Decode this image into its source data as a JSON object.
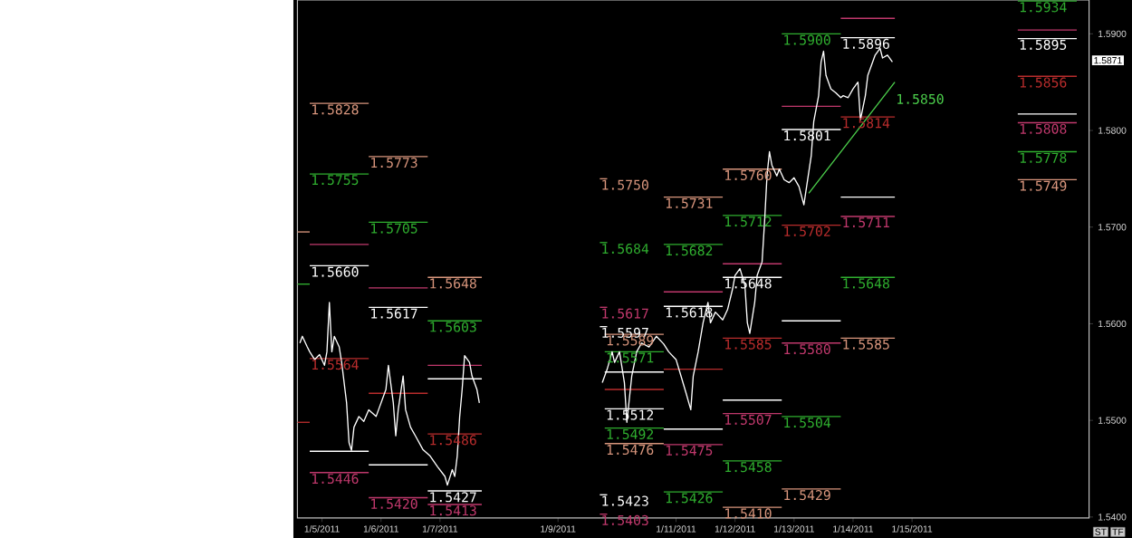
{
  "chart_data": {
    "type": "line",
    "xlim": [
      "2011-01-04T14:00",
      "2011-01-18T00:00"
    ],
    "ylim": [
      1.5399,
      1.5935
    ],
    "xticks": [
      {
        "value": "2011-01-05",
        "label": "1/5/2011"
      },
      {
        "value": "2011-01-06",
        "label": "1/6/2011"
      },
      {
        "value": "2011-01-07",
        "label": "1/7/2011"
      },
      {
        "value": "2011-01-09",
        "label": "1/9/2011"
      },
      {
        "value": "2011-01-11",
        "label": "1/11/2011"
      },
      {
        "value": "2011-01-12",
        "label": "1/12/2011"
      },
      {
        "value": "2011-01-13",
        "label": "1/13/2011"
      },
      {
        "value": "2011-01-14",
        "label": "1/14/2011"
      },
      {
        "value": "2011-01-15",
        "label": "1/15/2011"
      }
    ],
    "yticks": [
      {
        "value": 1.54,
        "label": "1.5400"
      },
      {
        "value": 1.55,
        "label": "1.5500"
      },
      {
        "value": 1.56,
        "label": "1.5600"
      },
      {
        "value": 1.57,
        "label": "1.5700"
      },
      {
        "value": 1.58,
        "label": "1.5800"
      },
      {
        "value": 1.59,
        "label": "1.5900"
      }
    ],
    "series": [
      {
        "x": [
          "2011-01-04T14:00",
          "2011-01-04T19:00"
        ],
        "values": [
          1.5695,
          1.5695
        ],
        "color": "#d8957c"
      },
      {
        "x": [
          "2011-01-04T14:00",
          "2011-01-04T19:00"
        ],
        "values": [
          1.5641,
          1.5641
        ],
        "color": "#2fae2f"
      },
      {
        "x": [
          "2011-01-04T14:00",
          "2011-01-04T19:00"
        ],
        "values": [
          1.5498,
          1.5498
        ],
        "color": "#b82c2c"
      },
      {
        "x": [
          "2011-01-04T19:00",
          "2011-01-05T19:00"
        ],
        "values": [
          1.5828,
          1.5828
        ],
        "color": "#d8957c",
        "value_labels": [
          "1.5828",
          null
        ]
      },
      {
        "x": [
          "2011-01-04T19:00",
          "2011-01-05T19:00"
        ],
        "values": [
          1.5755,
          1.5755
        ],
        "color": "#2fae2f",
        "value_labels": [
          "1.5755",
          null
        ]
      },
      {
        "x": [
          "2011-01-04T19:00",
          "2011-01-05T19:00"
        ],
        "values": [
          1.5682,
          1.5682
        ],
        "color": "#c0386c"
      },
      {
        "x": [
          "2011-01-04T19:00",
          "2011-01-05T19:00"
        ],
        "values": [
          1.566,
          1.566
        ],
        "color": "#ffffff",
        "value_labels": [
          "1.5660",
          null
        ]
      },
      {
        "x": [
          "2011-01-04T19:00",
          "2011-01-05T19:00"
        ],
        "values": [
          1.5564,
          1.5564
        ],
        "color": "#b82c2c",
        "value_labels": [
          "1.5564",
          null
        ]
      },
      {
        "x": [
          "2011-01-04T19:00",
          "2011-01-05T19:00"
        ],
        "values": [
          1.5468,
          1.5468
        ],
        "color": "#ffffff"
      },
      {
        "x": [
          "2011-01-04T19:00",
          "2011-01-05T19:00"
        ],
        "values": [
          1.5446,
          1.5446
        ],
        "color": "#c0386c",
        "value_labels": [
          "1.5446",
          null
        ]
      },
      {
        "x": [
          "2011-01-05T19:00",
          "2011-01-06T19:00"
        ],
        "values": [
          1.5773,
          1.5773
        ],
        "color": "#d8957c",
        "value_labels": [
          "1.5773",
          null
        ]
      },
      {
        "x": [
          "2011-01-05T19:00",
          "2011-01-06T19:00"
        ],
        "values": [
          1.5705,
          1.5705
        ],
        "color": "#2fae2f",
        "value_labels": [
          "1.5705",
          null
        ]
      },
      {
        "x": [
          "2011-01-05T19:00",
          "2011-01-06T19:00"
        ],
        "values": [
          1.5637,
          1.5637
        ],
        "color": "#c0386c"
      },
      {
        "x": [
          "2011-01-05T19:00",
          "2011-01-06T19:00"
        ],
        "values": [
          1.5617,
          1.5617
        ],
        "color": "#ffffff",
        "value_labels": [
          "1.5617",
          null
        ]
      },
      {
        "x": [
          "2011-01-05T19:00",
          "2011-01-06T19:00"
        ],
        "values": [
          1.5528,
          1.5528
        ],
        "color": "#b82c2c"
      },
      {
        "x": [
          "2011-01-05T19:00",
          "2011-01-06T19:00"
        ],
        "values": [
          1.5454,
          1.5454
        ],
        "color": "#ffffff"
      },
      {
        "x": [
          "2011-01-05T19:00",
          "2011-01-06T19:00"
        ],
        "values": [
          1.542,
          1.542
        ],
        "color": "#c0386c",
        "value_labels": [
          "1.5420",
          null
        ]
      },
      {
        "x": [
          "2011-01-06T19:00",
          "2011-01-07T17:00"
        ],
        "values": [
          1.5648,
          1.5648
        ],
        "color": "#d8957c",
        "value_labels": [
          "1.5648",
          null
        ]
      },
      {
        "x": [
          "2011-01-06T19:00",
          "2011-01-07T17:00"
        ],
        "values": [
          1.5603,
          1.5603
        ],
        "color": "#2fae2f",
        "value_labels": [
          "1.5603",
          null
        ]
      },
      {
        "x": [
          "2011-01-06T19:00",
          "2011-01-07T17:00"
        ],
        "values": [
          1.5557,
          1.5557
        ],
        "color": "#c0386c"
      },
      {
        "x": [
          "2011-01-06T19:00",
          "2011-01-07T17:00"
        ],
        "values": [
          1.5543,
          1.5543
        ],
        "color": "#ffffff"
      },
      {
        "x": [
          "2011-01-06T19:00",
          "2011-01-07T17:00"
        ],
        "values": [
          1.5486,
          1.5486
        ],
        "color": "#b82c2c",
        "value_labels": [
          "1.5486",
          null
        ]
      },
      {
        "x": [
          "2011-01-06T19:00",
          "2011-01-07T17:00"
        ],
        "values": [
          1.5427,
          1.5427
        ],
        "color": "#ffffff",
        "value_labels": [
          "1.5427",
          null
        ]
      },
      {
        "x": [
          "2011-01-06T19:00",
          "2011-01-07T17:00"
        ],
        "values": [
          1.5413,
          1.5413
        ],
        "color": "#c0386c",
        "value_labels": [
          "1.5413",
          null
        ]
      },
      {
        "x": [
          "2011-01-09T17:00",
          "2011-01-09T20:00"
        ],
        "values": [
          1.575,
          1.575
        ],
        "color": "#d8957c",
        "value_labels": [
          "1.5750",
          null
        ]
      },
      {
        "x": [
          "2011-01-09T17:00",
          "2011-01-09T20:00"
        ],
        "values": [
          1.5684,
          1.5684
        ],
        "color": "#2fae2f",
        "value_labels": [
          "1.5684",
          null
        ]
      },
      {
        "x": [
          "2011-01-09T17:00",
          "2011-01-09T20:00"
        ],
        "values": [
          1.5617,
          1.5617
        ],
        "color": "#c0386c",
        "value_labels": [
          "1.5617",
          null
        ]
      },
      {
        "x": [
          "2011-01-09T17:00",
          "2011-01-09T20:00"
        ],
        "values": [
          1.5597,
          1.5597
        ],
        "color": "#ffffff",
        "value_labels": [
          "1.5597",
          null
        ]
      },
      {
        "x": [
          "2011-01-09T17:00",
          "2011-01-09T20:00"
        ],
        "values": [
          1.5423,
          1.5423
        ],
        "color": "#ffffff",
        "value_labels": [
          "1.5423",
          null
        ]
      },
      {
        "x": [
          "2011-01-09T17:00",
          "2011-01-09T20:00"
        ],
        "values": [
          1.5403,
          1.5403
        ],
        "color": "#c0386c",
        "value_labels": [
          "1.5403",
          null
        ]
      },
      {
        "x": [
          "2011-01-09T19:00",
          "2011-01-10T19:00"
        ],
        "values": [
          1.5589,
          1.5589
        ],
        "color": "#d8957c",
        "value_labels": [
          "1.5589",
          null
        ]
      },
      {
        "x": [
          "2011-01-09T19:00",
          "2011-01-10T19:00"
        ],
        "values": [
          1.5571,
          1.5571
        ],
        "color": "#2fae2f",
        "value_labels": [
          "1.5571",
          null
        ]
      },
      {
        "x": [
          "2011-01-09T19:00",
          "2011-01-10T19:00"
        ],
        "values": [
          1.555,
          1.555
        ],
        "color": "#ffffff"
      },
      {
        "x": [
          "2011-01-09T19:00",
          "2011-01-10T19:00"
        ],
        "values": [
          1.5532,
          1.5532
        ],
        "color": "#b82c2c"
      },
      {
        "x": [
          "2011-01-09T19:00",
          "2011-01-10T19:00"
        ],
        "values": [
          1.5512,
          1.5512
        ],
        "color": "#ffffff",
        "value_labels": [
          "1.5512",
          null
        ]
      },
      {
        "x": [
          "2011-01-09T19:00",
          "2011-01-10T19:00"
        ],
        "values": [
          1.5492,
          1.5492
        ],
        "color": "#2fae2f",
        "value_labels": [
          "1.5492",
          null
        ]
      },
      {
        "x": [
          "2011-01-09T19:00",
          "2011-01-10T19:00"
        ],
        "values": [
          1.5476,
          1.5476
        ],
        "color": "#d8957c",
        "value_labels": [
          "1.5476",
          null
        ]
      },
      {
        "x": [
          "2011-01-10T19:00",
          "2011-01-11T19:00"
        ],
        "values": [
          1.5731,
          1.5731
        ],
        "color": "#d8957c",
        "value_labels": [
          "1.5731",
          null
        ]
      },
      {
        "x": [
          "2011-01-10T19:00",
          "2011-01-11T19:00"
        ],
        "values": [
          1.5682,
          1.5682
        ],
        "color": "#2fae2f",
        "value_labels": [
          "1.5682",
          null
        ]
      },
      {
        "x": [
          "2011-01-10T19:00",
          "2011-01-11T19:00"
        ],
        "values": [
          1.5633,
          1.5633
        ],
        "color": "#c0386c"
      },
      {
        "x": [
          "2011-01-10T19:00",
          "2011-01-11T19:00"
        ],
        "values": [
          1.5618,
          1.5618
        ],
        "color": "#ffffff",
        "value_labels": [
          "1.5618",
          null
        ]
      },
      {
        "x": [
          "2011-01-10T19:00",
          "2011-01-11T19:00"
        ],
        "values": [
          1.5553,
          1.5553
        ],
        "color": "#b82c2c"
      },
      {
        "x": [
          "2011-01-10T19:00",
          "2011-01-11T19:00"
        ],
        "values": [
          1.5491,
          1.5491
        ],
        "color": "#ffffff"
      },
      {
        "x": [
          "2011-01-10T19:00",
          "2011-01-11T19:00"
        ],
        "values": [
          1.5475,
          1.5475
        ],
        "color": "#c0386c",
        "value_labels": [
          "1.5475",
          null
        ]
      },
      {
        "x": [
          "2011-01-10T19:00",
          "2011-01-11T19:00"
        ],
        "values": [
          1.5426,
          1.5426
        ],
        "color": "#2fae2f",
        "value_labels": [
          "1.5426",
          null
        ]
      },
      {
        "x": [
          "2011-01-11T19:00",
          "2011-01-12T19:00"
        ],
        "values": [
          1.576,
          1.576
        ],
        "color": "#d8957c",
        "value_labels": [
          "1.5760",
          null
        ]
      },
      {
        "x": [
          "2011-01-11T19:00",
          "2011-01-12T19:00"
        ],
        "values": [
          1.5712,
          1.5712
        ],
        "color": "#2fae2f",
        "value_labels": [
          "1.5712",
          null
        ]
      },
      {
        "x": [
          "2011-01-11T19:00",
          "2011-01-12T19:00"
        ],
        "values": [
          1.5662,
          1.5662
        ],
        "color": "#c0386c"
      },
      {
        "x": [
          "2011-01-11T19:00",
          "2011-01-12T19:00"
        ],
        "values": [
          1.5648,
          1.5648
        ],
        "color": "#ffffff",
        "value_labels": [
          "1.5648",
          null
        ]
      },
      {
        "x": [
          "2011-01-11T19:00",
          "2011-01-12T19:00"
        ],
        "values": [
          1.5585,
          1.5585
        ],
        "color": "#b82c2c",
        "value_labels": [
          "1.5585",
          null
        ]
      },
      {
        "x": [
          "2011-01-11T19:00",
          "2011-01-12T19:00"
        ],
        "values": [
          1.5521,
          1.5521
        ],
        "color": "#ffffff"
      },
      {
        "x": [
          "2011-01-11T19:00",
          "2011-01-12T19:00"
        ],
        "values": [
          1.5507,
          1.5507
        ],
        "color": "#c0386c",
        "value_labels": [
          "1.5507",
          null
        ]
      },
      {
        "x": [
          "2011-01-11T19:00",
          "2011-01-12T19:00"
        ],
        "values": [
          1.5458,
          1.5458
        ],
        "color": "#2fae2f",
        "value_labels": [
          "1.5458",
          null
        ]
      },
      {
        "x": [
          "2011-01-11T19:00",
          "2011-01-12T19:00"
        ],
        "values": [
          1.541,
          1.541
        ],
        "color": "#d8957c",
        "value_labels": [
          "1.5410",
          null
        ]
      },
      {
        "x": [
          "2011-01-12T19:00",
          "2011-01-13T19:00"
        ],
        "values": [
          1.59,
          1.59
        ],
        "color": "#2fae2f",
        "value_labels": [
          "1.5900",
          null
        ]
      },
      {
        "x": [
          "2011-01-12T19:00",
          "2011-01-13T19:00"
        ],
        "values": [
          1.5825,
          1.5825
        ],
        "color": "#c0386c"
      },
      {
        "x": [
          "2011-01-12T19:00",
          "2011-01-13T19:00"
        ],
        "values": [
          1.5801,
          1.5801
        ],
        "color": "#ffffff",
        "value_labels": [
          "1.5801",
          null
        ]
      },
      {
        "x": [
          "2011-01-12T19:00",
          "2011-01-13T19:00"
        ],
        "values": [
          1.5702,
          1.5702
        ],
        "color": "#b82c2c",
        "value_labels": [
          "1.5702",
          null
        ]
      },
      {
        "x": [
          "2011-01-12T19:00",
          "2011-01-13T19:00"
        ],
        "values": [
          1.5603,
          1.5603
        ],
        "color": "#ffffff"
      },
      {
        "x": [
          "2011-01-12T19:00",
          "2011-01-13T19:00"
        ],
        "values": [
          1.558,
          1.558
        ],
        "color": "#c0386c",
        "value_labels": [
          "1.5580",
          null
        ]
      },
      {
        "x": [
          "2011-01-12T19:00",
          "2011-01-13T19:00"
        ],
        "values": [
          1.5504,
          1.5504
        ],
        "color": "#2fae2f",
        "value_labels": [
          "1.5504",
          null
        ]
      },
      {
        "x": [
          "2011-01-12T19:00",
          "2011-01-13T19:00"
        ],
        "values": [
          1.5429,
          1.5429
        ],
        "color": "#d8957c",
        "value_labels": [
          "1.5429",
          null
        ]
      },
      {
        "x": [
          "2011-01-13T19:00",
          "2011-01-14T17:00"
        ],
        "values": [
          1.5916,
          1.5916
        ],
        "color": "#c0386c"
      },
      {
        "x": [
          "2011-01-13T19:00",
          "2011-01-14T17:00"
        ],
        "values": [
          1.5896,
          1.5896
        ],
        "color": "#ffffff",
        "value_labels": [
          "1.5896",
          null
        ]
      },
      {
        "x": [
          "2011-01-13T19:00",
          "2011-01-14T17:00"
        ],
        "values": [
          1.5814,
          1.5814
        ],
        "color": "#b82c2c",
        "value_labels": [
          "1.5814",
          null
        ]
      },
      {
        "x": [
          "2011-01-13T19:00",
          "2011-01-14T17:00"
        ],
        "values": [
          1.5731,
          1.5731
        ],
        "color": "#ffffff"
      },
      {
        "x": [
          "2011-01-13T19:00",
          "2011-01-14T17:00"
        ],
        "values": [
          1.5711,
          1.5711
        ],
        "color": "#c0386c",
        "value_labels": [
          "1.5711",
          null
        ]
      },
      {
        "x": [
          "2011-01-13T19:00",
          "2011-01-14T17:00"
        ],
        "values": [
          1.5648,
          1.5648
        ],
        "color": "#2fae2f",
        "value_labels": [
          "1.5648",
          null
        ]
      },
      {
        "x": [
          "2011-01-13T19:00",
          "2011-01-14T17:00"
        ],
        "values": [
          1.5585,
          1.5585
        ],
        "color": "#d8957c",
        "value_labels": [
          "1.5585",
          null
        ]
      },
      {
        "x": [
          "2011-01-16T19:00",
          "2011-01-17T19:00"
        ],
        "values": [
          1.5934,
          1.5934
        ],
        "color": "#2fae2f",
        "value_labels": [
          "1.5934",
          null
        ]
      },
      {
        "x": [
          "2011-01-16T19:00",
          "2011-01-17T19:00"
        ],
        "values": [
          1.5904,
          1.5904
        ],
        "color": "#c0386c"
      },
      {
        "x": [
          "2011-01-16T19:00",
          "2011-01-17T19:00"
        ],
        "values": [
          1.5895,
          1.5895
        ],
        "color": "#ffffff",
        "value_labels": [
          "1.5895",
          null
        ]
      },
      {
        "x": [
          "2011-01-16T19:00",
          "2011-01-17T19:00"
        ],
        "values": [
          1.5856,
          1.5856
        ],
        "color": "#b82c2c",
        "value_labels": [
          "1.5856",
          null
        ]
      },
      {
        "x": [
          "2011-01-16T19:00",
          "2011-01-17T19:00"
        ],
        "values": [
          1.5817,
          1.5817
        ],
        "color": "#ffffff"
      },
      {
        "x": [
          "2011-01-16T19:00",
          "2011-01-17T19:00"
        ],
        "values": [
          1.5808,
          1.5808
        ],
        "color": "#c0386c",
        "value_labels": [
          "1.5808",
          null
        ]
      },
      {
        "x": [
          "2011-01-16T19:00",
          "2011-01-17T19:00"
        ],
        "values": [
          1.5778,
          1.5778
        ],
        "color": "#2fae2f",
        "value_labels": [
          "1.5778",
          null
        ]
      },
      {
        "x": [
          "2011-01-16T19:00",
          "2011-01-17T19:00"
        ],
        "values": [
          1.5749,
          1.5749
        ],
        "color": "#d8957c",
        "value_labels": [
          "1.5749",
          null
        ]
      },
      {
        "x": [
          "2011-01-04T15:00",
          "2011-01-04T16:00",
          "2011-01-04T18:00",
          "2011-01-04T19:00",
          "2011-01-04T21:00",
          "2011-01-04T23:00",
          "2011-01-05T01:00",
          "2011-01-05T02:00",
          "2011-01-05T03:00",
          "2011-01-05T04:00",
          "2011-01-05T05:00",
          "2011-01-05T07:00",
          "2011-01-05T08:00",
          "2011-01-05T10:00",
          "2011-01-05T11:00",
          "2011-01-05T12:00",
          "2011-01-05T13:00",
          "2011-01-05T15:00",
          "2011-01-05T17:00",
          "2011-01-05T19:00",
          "2011-01-05T22:00",
          "2011-01-06T00:00",
          "2011-01-06T02:00",
          "2011-01-06T03:00",
          "2011-01-06T05:00",
          "2011-01-06T06:00",
          "2011-01-06T07:00",
          "2011-01-06T09:00",
          "2011-01-06T10:00",
          "2011-01-06T12:00",
          "2011-01-06T14:00",
          "2011-01-06T17:00",
          "2011-01-06T20:00",
          "2011-01-06T23:00",
          "2011-01-07T02:00",
          "2011-01-07T03:00",
          "2011-01-07T05:00",
          "2011-01-07T06:00",
          "2011-01-07T07:00",
          "2011-01-07T08:00",
          "2011-01-07T09:00",
          "2011-01-07T10:00",
          "2011-01-07T12:00",
          "2011-01-07T13:00",
          "2011-01-07T15:00",
          "2011-01-07T16:00",
          "2011-01-08T12:00",
          "2011-01-09T18:00",
          "2011-01-09T20:00",
          "2011-01-09T22:00",
          "2011-01-09T23:00",
          "2011-01-10T01:00",
          "2011-01-10T03:00",
          "2011-01-10T04:00",
          "2011-01-10T06:00",
          "2011-01-10T08:00",
          "2011-01-10T10:00",
          "2011-01-10T13:00",
          "2011-01-10T16:00",
          "2011-01-10T19:00",
          "2011-01-10T21:00",
          "2011-01-11T00:00",
          "2011-01-11T02:00",
          "2011-01-11T04:00",
          "2011-01-11T06:00",
          "2011-01-11T07:00",
          "2011-01-11T09:00",
          "2011-01-11T11:00",
          "2011-01-11T13:00",
          "2011-01-11T14:00",
          "2011-01-11T16:00",
          "2011-01-11T19:00",
          "2011-01-11T21:00",
          "2011-01-11T23:00",
          "2011-01-12T00:00",
          "2011-01-12T02:00",
          "2011-01-12T04:00",
          "2011-01-12T05:00",
          "2011-01-12T06:00",
          "2011-01-12T08:00",
          "2011-01-12T09:00",
          "2011-01-12T11:00",
          "2011-01-12T12:00",
          "2011-01-12T13:00",
          "2011-01-12T14:00",
          "2011-01-12T15:00",
          "2011-01-12T17:00",
          "2011-01-12T18:00",
          "2011-01-12T20:00",
          "2011-01-12T22:00",
          "2011-01-13T00:00",
          "2011-01-13T02:00",
          "2011-01-13T04:00",
          "2011-01-13T05:00",
          "2011-01-13T07:00",
          "2011-01-13T08:00",
          "2011-01-13T10:00",
          "2011-01-13T11:00",
          "2011-01-13T12:00",
          "2011-01-13T13:00",
          "2011-01-13T15:00",
          "2011-01-13T17:00",
          "2011-01-13T19:00",
          "2011-01-13T20:00",
          "2011-01-13T22:00",
          "2011-01-14T00:00",
          "2011-01-14T02:00",
          "2011-01-14T03:00",
          "2011-01-14T05:00",
          "2011-01-14T06:00",
          "2011-01-14T08:00",
          "2011-01-14T09:00",
          "2011-01-14T11:00",
          "2011-01-14T12:00",
          "2011-01-14T14:00",
          "2011-01-14T16:00"
        ],
        "values": [
          1.558,
          1.5587,
          1.5576,
          1.5571,
          1.5563,
          1.5568,
          1.5557,
          1.5571,
          1.5622,
          1.5571,
          1.5587,
          1.5576,
          1.556,
          1.5518,
          1.5477,
          1.5469,
          1.5493,
          1.5504,
          1.5499,
          1.5511,
          1.5504,
          1.5518,
          1.5532,
          1.5557,
          1.5518,
          1.5484,
          1.5511,
          1.5546,
          1.5511,
          1.5493,
          1.5484,
          1.547,
          1.5463,
          1.5452,
          1.5442,
          1.5433,
          1.5449,
          1.5442,
          1.5463,
          1.5504,
          1.5532,
          1.5567,
          1.556,
          1.5546,
          1.5532,
          1.5518,
          null,
          1.5539,
          1.5553,
          1.5571,
          1.556,
          1.5571,
          1.5539,
          1.5498,
          1.5546,
          1.5571,
          1.558,
          1.5576,
          1.5587,
          1.5579,
          1.5571,
          1.5563,
          1.5546,
          1.5529,
          1.5511,
          1.5546,
          1.5571,
          1.5601,
          1.5622,
          1.5601,
          1.5612,
          1.5604,
          1.5615,
          1.5636,
          1.565,
          1.5657,
          1.564,
          1.5601,
          1.559,
          1.5622,
          1.565,
          1.5664,
          1.5705,
          1.5753,
          1.5778,
          1.5764,
          1.5753,
          1.576,
          1.5749,
          1.5746,
          1.5751,
          1.5742,
          1.5723,
          1.574,
          1.5774,
          1.5809,
          1.5836,
          1.5871,
          1.5882,
          1.5857,
          1.5843,
          1.5839,
          1.5834,
          1.5836,
          1.5834,
          1.5843,
          1.585,
          1.5811,
          1.5836,
          1.5857,
          1.5871,
          1.5878,
          1.5885,
          1.5875,
          1.5878,
          1.5871
        ],
        "color": "#ffffff"
      },
      {
        "x": [
          "2011-01-13T06:00",
          "2011-01-14T17:00"
        ],
        "values": [
          1.5735,
          1.585
        ],
        "color": "#4cd04c",
        "value_labels": [
          null,
          "1.5850"
        ]
      }
    ],
    "annotations": [
      "1.5871",
      "ST",
      "TF"
    ]
  }
}
